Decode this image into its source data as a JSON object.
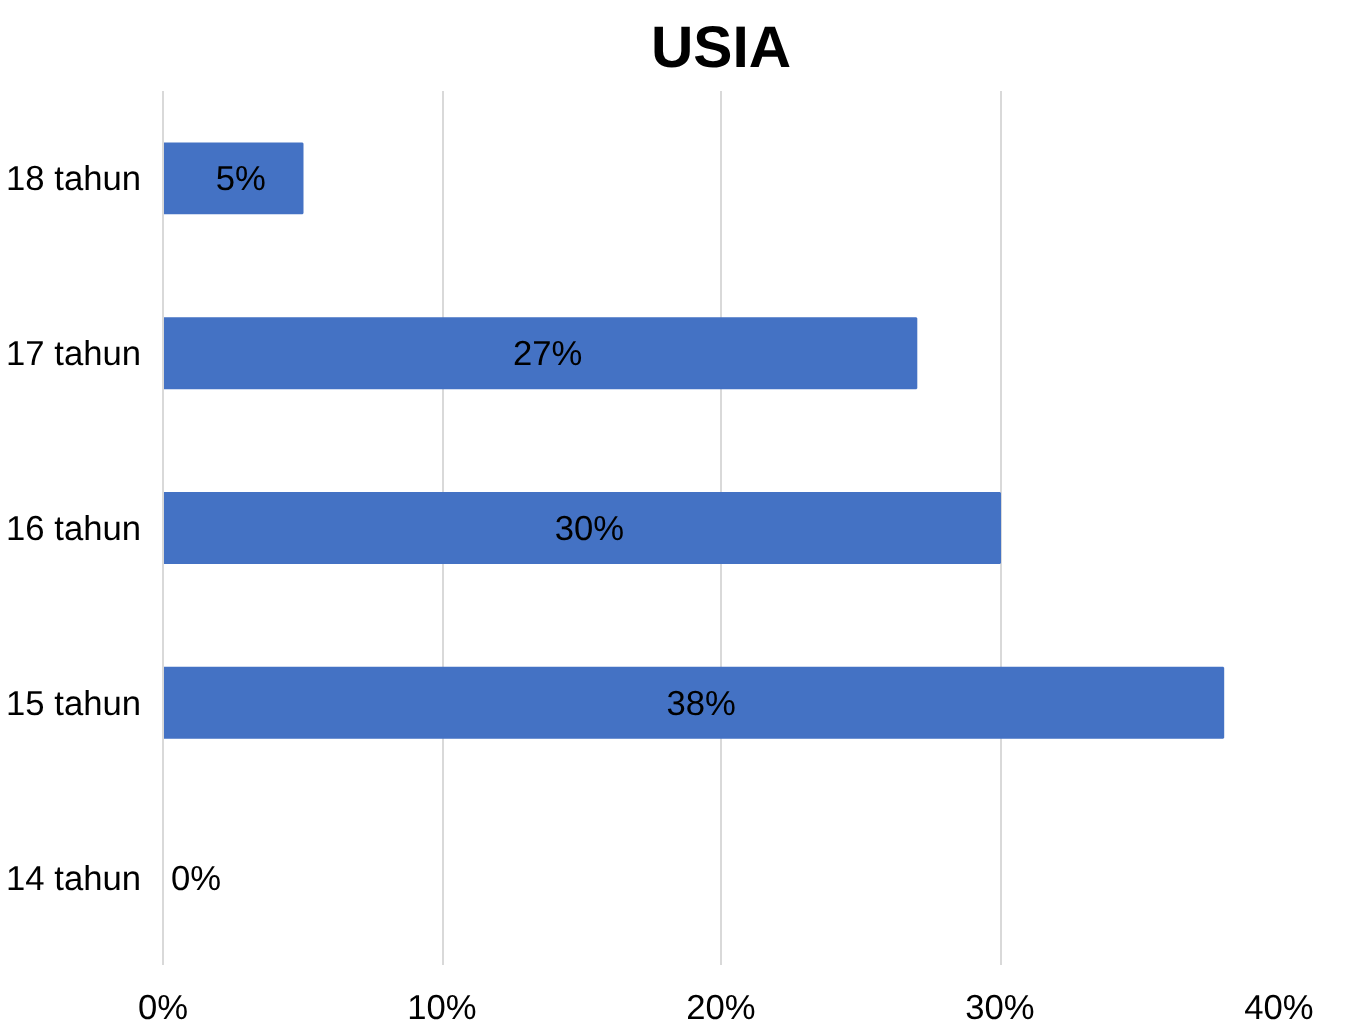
{
  "chart_data": {
    "type": "bar",
    "orientation": "horizontal",
    "title": "USIA",
    "categories": [
      "18 tahun",
      "17 tahun",
      "16 tahun",
      "15 tahun",
      "14 tahun"
    ],
    "values": [
      5,
      27,
      30,
      38,
      0
    ],
    "value_labels": [
      "5%",
      "27%",
      "30%",
      "38%",
      "0%"
    ],
    "color": "#4472c4",
    "xlim": [
      0,
      40
    ],
    "xticks": [
      {
        "value": 0,
        "label": "0%"
      },
      {
        "value": 10,
        "label": "10%"
      },
      {
        "value": 20,
        "label": "20%"
      },
      {
        "value": 30,
        "label": "30%"
      },
      {
        "value": 40,
        "label": "40%"
      }
    ],
    "grid": "x"
  }
}
